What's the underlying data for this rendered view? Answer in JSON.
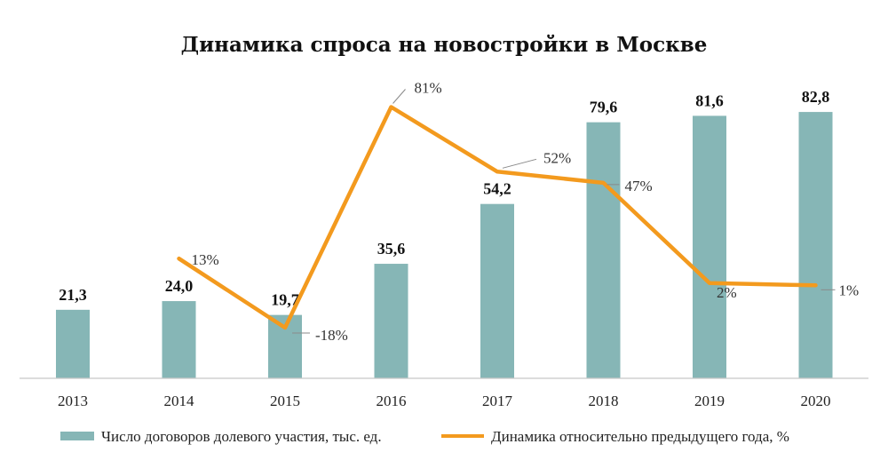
{
  "chart_data": {
    "type": "bar",
    "title": "Динамика спроса на новостройки в Москве",
    "categories": [
      "2013",
      "2014",
      "2015",
      "2016",
      "2017",
      "2018",
      "2019",
      "2020"
    ],
    "series": [
      {
        "name": "Число договоров долевого участия, тыс. ед.",
        "type": "bar",
        "color": "#86b6b6",
        "values": [
          21.3,
          24.0,
          19.7,
          35.6,
          54.2,
          79.6,
          81.6,
          82.8
        ],
        "labels": [
          "21,3",
          "24,0",
          "19,7",
          "35,6",
          "54,2",
          "79,6",
          "81,6",
          "82,8"
        ]
      },
      {
        "name": "Динамика относительно предыдущего года, %",
        "type": "line",
        "color": "#f39a1e",
        "values": [
          null,
          13,
          -18,
          81,
          52,
          47,
          2,
          1
        ],
        "labels": [
          "",
          "13%",
          "-18%",
          "81%",
          "52%",
          "47%",
          "2%",
          "1%"
        ]
      }
    ],
    "axes": {
      "bar_ylim": [
        0,
        90
      ],
      "line_ylim": [
        -40,
        100
      ],
      "grid": false
    },
    "legend": {
      "position": "bottom"
    }
  }
}
